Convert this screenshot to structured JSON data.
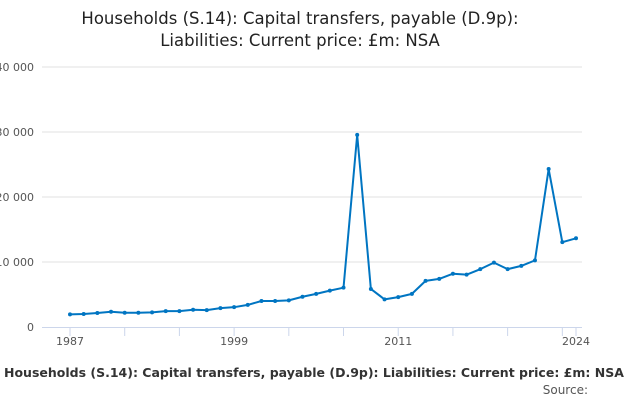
{
  "chart_data": {
    "type": "line",
    "title": "Households (S.14): Capital transfers, payable (D.9p): Liabilities: Current price: £m: NSA",
    "title_lines": [
      "Households (S.14): Capital transfers, payable (D.9p):",
      "Liabilities: Current price: £m: NSA"
    ],
    "xlabel": "",
    "ylabel": "",
    "x": [
      1987,
      1988,
      1989,
      1990,
      1991,
      1992,
      1993,
      1994,
      1995,
      1996,
      1997,
      1998,
      1999,
      2000,
      2001,
      2002,
      2003,
      2004,
      2005,
      2006,
      2007,
      2008,
      2009,
      2010,
      2011,
      2012,
      2013,
      2014,
      2015,
      2016,
      2017,
      2018,
      2019,
      2020,
      2021,
      2022,
      2023,
      2024
    ],
    "series": [
      {
        "values": [
          1950,
          2000,
          2150,
          2350,
          2200,
          2200,
          2250,
          2450,
          2450,
          2650,
          2600,
          2900,
          3050,
          3400,
          4000,
          4000,
          4100,
          4650,
          5100,
          5600,
          6050,
          29550,
          5850,
          4250,
          4600,
          5100,
          7100,
          7400,
          8200,
          8050,
          8900,
          9900,
          8900,
          9400,
          10250,
          24300,
          13050,
          13650
        ],
        "color": "#0075c2"
      }
    ],
    "xlim": [
      1987,
      2024
    ],
    "ylim": [
      0,
      40000
    ],
    "x_ticks": [
      1987,
      1999,
      2011,
      2024
    ],
    "x_tick_labels": [
      "1987",
      "1999",
      "2011",
      "2024"
    ],
    "y_ticks": [
      0,
      10000,
      20000,
      30000,
      40000
    ],
    "y_tick_labels": [
      "0",
      "10 000",
      "20 000",
      "30 000",
      "40 000"
    ],
    "grid": true,
    "legend": "none"
  },
  "footer": {
    "caption": "Households (S.14): Capital transfers, payable (D.9p): Liabilities: Current price: £m: NSA",
    "source_label": "Source:"
  }
}
